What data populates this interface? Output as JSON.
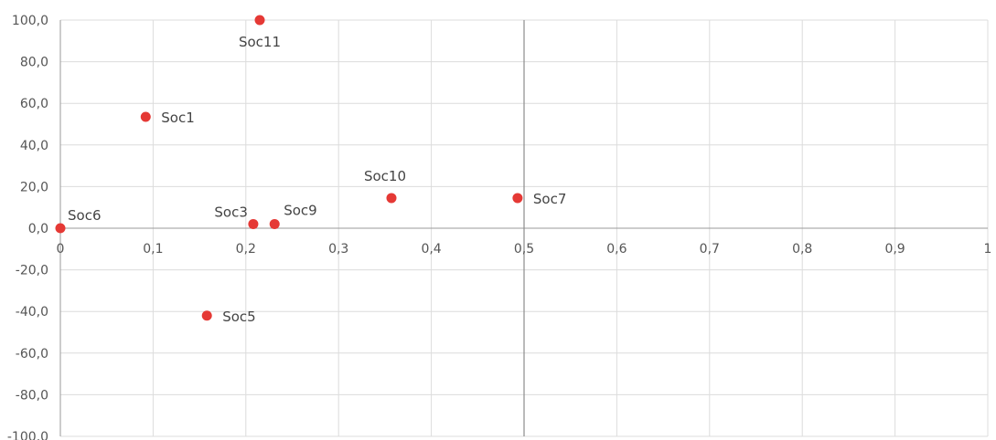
{
  "chart_data": {
    "type": "scatter",
    "title": "",
    "xlabel": "",
    "ylabel": "",
    "xlim": [
      0,
      1
    ],
    "ylim": [
      -100,
      100
    ],
    "x_ticks": [
      "0",
      "0,1",
      "0,2",
      "0,3",
      "0,4",
      "0,5",
      "0,6",
      "0,7",
      "0,8",
      "0,9",
      "1"
    ],
    "y_ticks": [
      "100,0",
      "80,0",
      "60,0",
      "40,0",
      "20,0",
      "0,0",
      "-20,0",
      "-40,0",
      "-60,0",
      "-80,0",
      "-100,0"
    ],
    "grid": true,
    "reference_line_x": 0.5,
    "point_color": "#e53935",
    "points": [
      {
        "label": "Soc11",
        "x": 0.215,
        "y": 100.0
      },
      {
        "label": "Soc1",
        "x": 0.092,
        "y": 53.5
      },
      {
        "label": "Soc10",
        "x": 0.357,
        "y": 14.5
      },
      {
        "label": "Soc7",
        "x": 0.493,
        "y": 14.5
      },
      {
        "label": "Soc6",
        "x": 0.0,
        "y": 0.0
      },
      {
        "label": "Soc3",
        "x": 0.208,
        "y": 2.0
      },
      {
        "label": "Soc9",
        "x": 0.231,
        "y": 2.0
      },
      {
        "label": "Soc5",
        "x": 0.158,
        "y": -42.0
      }
    ]
  }
}
